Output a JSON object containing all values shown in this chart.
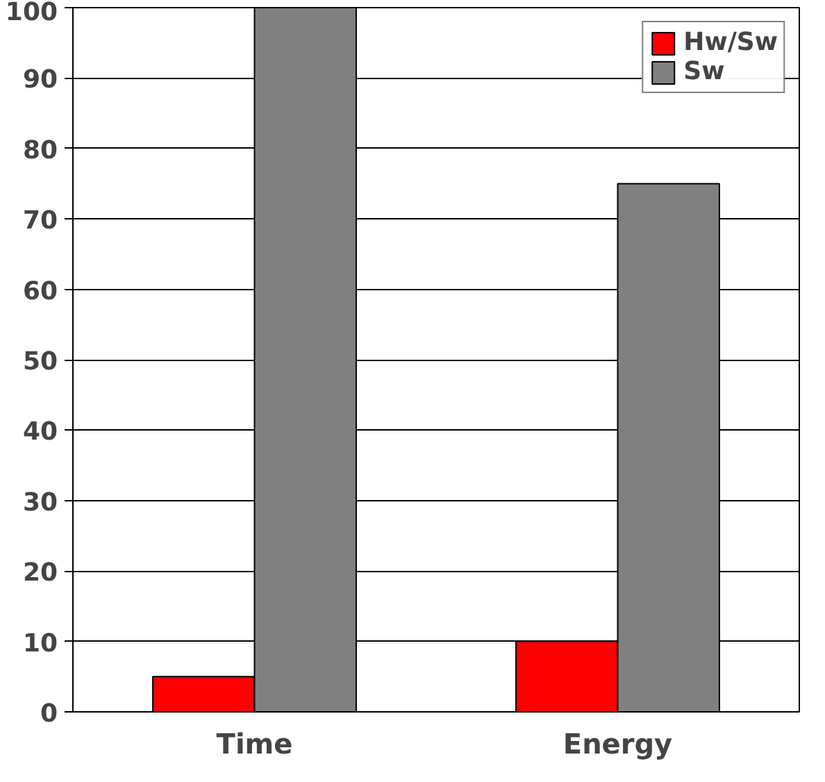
{
  "chart_data": {
    "type": "bar",
    "categories": [
      "Time",
      "Energy"
    ],
    "series": [
      {
        "name": "Hw/Sw",
        "color": "#ff0000",
        "values": [
          5,
          10
        ]
      },
      {
        "name": "Sw",
        "color": "#808080",
        "values": [
          100,
          75
        ]
      }
    ],
    "ylim": [
      0,
      100
    ],
    "yticks": [
      0,
      10,
      20,
      30,
      40,
      50,
      60,
      70,
      80,
      90,
      100
    ],
    "grid": "y",
    "legend": "top right"
  }
}
